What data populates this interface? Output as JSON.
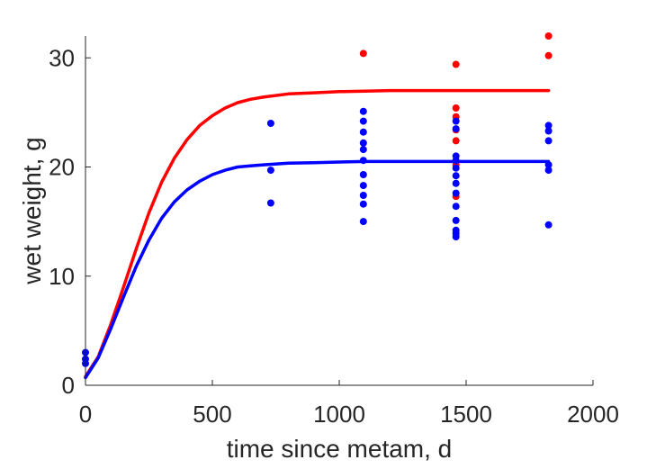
{
  "chart_data": {
    "type": "scatter",
    "title": "",
    "xlabel": "time since metam, d",
    "ylabel": "wet weight, g",
    "xlim": [
      0,
      2000
    ],
    "ylim": [
      0,
      32
    ],
    "xticks": [
      0,
      500,
      1000,
      1500,
      2000
    ],
    "yticks": [
      0,
      10,
      20,
      30
    ],
    "grid": false,
    "legend": "none",
    "series": [
      {
        "kind": "points",
        "color": "#ff0000",
        "points": [
          [
            1095,
            30.4
          ],
          [
            1460,
            29.4
          ],
          [
            1460,
            25.4
          ],
          [
            1460,
            24.6
          ],
          [
            1460,
            23.4
          ],
          [
            1460,
            22.4
          ],
          [
            1460,
            20.2
          ],
          [
            1460,
            17.3
          ],
          [
            1825,
            32.0
          ],
          [
            1825,
            30.2
          ]
        ]
      },
      {
        "kind": "points",
        "color": "#0000ff",
        "points": [
          [
            0,
            3.0
          ],
          [
            0,
            2.4
          ],
          [
            0,
            2.0
          ],
          [
            730,
            24.0
          ],
          [
            730,
            19.7
          ],
          [
            730,
            16.7
          ],
          [
            1095,
            25.1
          ],
          [
            1095,
            24.2
          ],
          [
            1095,
            23.2
          ],
          [
            1095,
            22.2
          ],
          [
            1095,
            21.6
          ],
          [
            1095,
            20.6
          ],
          [
            1095,
            19.3
          ],
          [
            1095,
            18.3
          ],
          [
            1095,
            17.4
          ],
          [
            1095,
            16.6
          ],
          [
            1095,
            15.0
          ],
          [
            1460,
            24.2
          ],
          [
            1460,
            23.5
          ],
          [
            1460,
            21.0
          ],
          [
            1460,
            20.6
          ],
          [
            1460,
            19.9
          ],
          [
            1460,
            19.2
          ],
          [
            1460,
            18.5
          ],
          [
            1460,
            17.6
          ],
          [
            1460,
            16.4
          ],
          [
            1460,
            15.1
          ],
          [
            1460,
            14.2
          ],
          [
            1460,
            13.9
          ],
          [
            1460,
            13.6
          ],
          [
            1825,
            23.8
          ],
          [
            1825,
            23.3
          ],
          [
            1825,
            22.4
          ],
          [
            1825,
            20.2
          ],
          [
            1825,
            19.7
          ],
          [
            1825,
            14.7
          ]
        ]
      },
      {
        "kind": "curve",
        "color": "#ff0000",
        "x": [
          0,
          50,
          100,
          150,
          200,
          250,
          300,
          350,
          400,
          450,
          500,
          550,
          600,
          650,
          700,
          800,
          900,
          1000,
          1100,
          1200,
          1400,
          1600,
          1825
        ],
        "y": [
          0.8,
          2.6,
          5.6,
          9.0,
          12.5,
          15.8,
          18.6,
          20.8,
          22.5,
          23.8,
          24.7,
          25.4,
          25.9,
          26.2,
          26.4,
          26.7,
          26.8,
          26.9,
          26.95,
          27.0,
          27.0,
          27.0,
          27.0
        ]
      },
      {
        "kind": "curve",
        "color": "#0000ff",
        "x": [
          0,
          50,
          100,
          150,
          200,
          250,
          300,
          350,
          400,
          450,
          500,
          550,
          600,
          650,
          700,
          800,
          900,
          1000,
          1100,
          1200,
          1400,
          1600,
          1825
        ],
        "y": [
          0.7,
          2.5,
          5.2,
          8.1,
          10.9,
          13.3,
          15.3,
          16.8,
          17.9,
          18.7,
          19.3,
          19.7,
          20.0,
          20.1,
          20.2,
          20.35,
          20.4,
          20.45,
          20.5,
          20.5,
          20.5,
          20.5,
          20.5
        ]
      }
    ]
  }
}
